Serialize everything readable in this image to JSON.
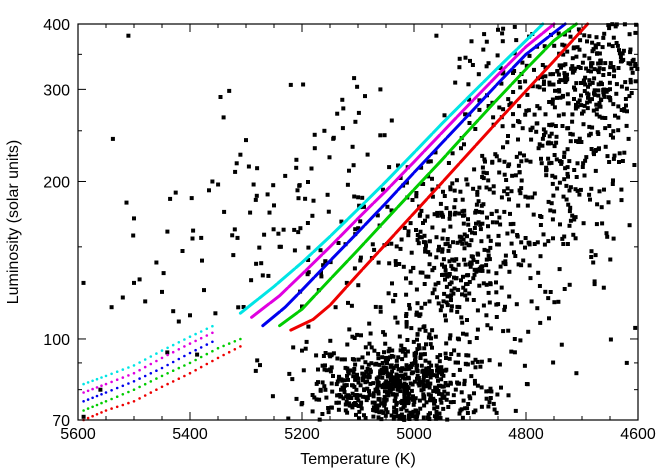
{
  "chart_data": {
    "type": "scatter",
    "title": "",
    "xlabel": "Temperature (K)",
    "ylabel": "Luminosity (solar units)",
    "x_reversed": true,
    "y_scale": "log",
    "xlim": [
      5600,
      4600
    ],
    "ylim": [
      70,
      400
    ],
    "x_ticks": [
      5600,
      5400,
      5200,
      5000,
      4800,
      4600
    ],
    "y_ticks": [
      70,
      100,
      200,
      300,
      400
    ],
    "grid": false,
    "legend": "none",
    "series": [
      {
        "color": "#00e5e5",
        "style": "line",
        "points": [
          [
            5310,
            112
          ],
          [
            5250,
            126
          ],
          [
            5200,
            140
          ],
          [
            5150,
            157
          ],
          [
            5100,
            177
          ],
          [
            5050,
            200
          ],
          [
            5000,
            227
          ],
          [
            4950,
            258
          ],
          [
            4900,
            292
          ],
          [
            4850,
            330
          ],
          [
            4800,
            372
          ],
          [
            4770,
            400
          ]
        ]
      },
      {
        "color": "#e000e0",
        "style": "line",
        "points": [
          [
            5290,
            110
          ],
          [
            5240,
            121
          ],
          [
            5200,
            133
          ],
          [
            5150,
            150
          ],
          [
            5100,
            170
          ],
          [
            5050,
            192
          ],
          [
            5000,
            218
          ],
          [
            4950,
            248
          ],
          [
            4900,
            282
          ],
          [
            4850,
            320
          ],
          [
            4800,
            362
          ],
          [
            4750,
            400
          ]
        ]
      },
      {
        "color": "#0000ee",
        "style": "line",
        "points": [
          [
            5270,
            106
          ],
          [
            5230,
            115
          ],
          [
            5200,
            124
          ],
          [
            5150,
            141
          ],
          [
            5100,
            160
          ],
          [
            5050,
            182
          ],
          [
            5000,
            208
          ],
          [
            4950,
            237
          ],
          [
            4900,
            270
          ],
          [
            4850,
            308
          ],
          [
            4800,
            350
          ],
          [
            4730,
            400
          ]
        ]
      },
      {
        "color": "#00cc00",
        "style": "line",
        "points": [
          [
            5240,
            106
          ],
          [
            5200,
            114
          ],
          [
            5150,
            130
          ],
          [
            5100,
            148
          ],
          [
            5050,
            169
          ],
          [
            5000,
            193
          ],
          [
            4950,
            220
          ],
          [
            4900,
            252
          ],
          [
            4850,
            288
          ],
          [
            4800,
            328
          ],
          [
            4750,
            372
          ],
          [
            4710,
            400
          ]
        ]
      },
      {
        "color": "#ee0000",
        "style": "line",
        "points": [
          [
            5220,
            104
          ],
          [
            5180,
            109
          ],
          [
            5150,
            116
          ],
          [
            5100,
            133
          ],
          [
            5050,
            152
          ],
          [
            5000,
            174
          ],
          [
            4950,
            199
          ],
          [
            4900,
            228
          ],
          [
            4850,
            261
          ],
          [
            4800,
            298
          ],
          [
            4750,
            340
          ],
          [
            4690,
            400
          ]
        ]
      },
      {
        "color": "#00e5e5",
        "style": "dots",
        "points": [
          [
            5590,
            82
          ],
          [
            5550,
            85
          ],
          [
            5500,
            89
          ],
          [
            5450,
            95
          ],
          [
            5400,
            101
          ],
          [
            5350,
            107
          ]
        ]
      },
      {
        "color": "#e000e0",
        "style": "dots",
        "points": [
          [
            5590,
            79
          ],
          [
            5550,
            82
          ],
          [
            5500,
            86
          ],
          [
            5450,
            92
          ],
          [
            5400,
            98
          ],
          [
            5350,
            104
          ]
        ]
      },
      {
        "color": "#0000ee",
        "style": "dots",
        "points": [
          [
            5590,
            76
          ],
          [
            5550,
            79
          ],
          [
            5500,
            83
          ],
          [
            5450,
            88
          ],
          [
            5400,
            94
          ],
          [
            5350,
            100
          ]
        ]
      },
      {
        "color": "#00cc00",
        "style": "dots",
        "points": [
          [
            5590,
            73
          ],
          [
            5550,
            76
          ],
          [
            5500,
            80
          ],
          [
            5450,
            85
          ],
          [
            5400,
            90
          ],
          [
            5350,
            96
          ],
          [
            5300,
            101
          ]
        ]
      },
      {
        "color": "#ee0000",
        "style": "dots",
        "points": [
          [
            5590,
            70
          ],
          [
            5550,
            73
          ],
          [
            5500,
            76
          ],
          [
            5450,
            81
          ],
          [
            5400,
            86
          ],
          [
            5350,
            92
          ],
          [
            5300,
            98
          ]
        ]
      }
    ],
    "clusters": [
      {
        "color": "#000000",
        "count": 700,
        "center": [
          5030,
          80
        ],
        "spread": [
          80,
          0.09
        ]
      },
      {
        "color": "#000000",
        "count": 380,
        "center": [
          4920,
          140
        ],
        "spread": [
          65,
          0.18
        ]
      },
      {
        "color": "#000000",
        "count": 420,
        "center": [
          4750,
          240
        ],
        "spread": [
          80,
          0.26
        ]
      },
      {
        "color": "#000000",
        "count": 220,
        "center": [
          4650,
          330
        ],
        "spread": [
          45,
          0.15
        ]
      },
      {
        "color": "#000000",
        "count": 170,
        "center": [
          5180,
          170
        ],
        "spread": [
          150,
          0.3
        ]
      }
    ],
    "points": [
      [
        5510,
        380
      ],
      [
        5330,
        298
      ],
      [
        5220,
        306
      ],
      [
        5400,
        111
      ],
      [
        5280,
        91
      ],
      [
        5050,
        92
      ],
      [
        5100,
        84
      ],
      [
        5200,
        95
      ],
      [
        5500,
        170
      ],
      [
        5360,
        200
      ],
      [
        5310,
        225
      ],
      [
        5300,
        240
      ],
      [
        5250,
        180
      ],
      [
        5230,
        205
      ],
      [
        5210,
        220
      ],
      [
        5160,
        250
      ],
      [
        5060,
        300
      ],
      [
        4960,
        380
      ],
      [
        4900,
        340
      ],
      [
        4870,
        370
      ],
      [
        4850,
        390
      ],
      [
        4820,
        395
      ],
      [
        5430,
        113
      ],
      [
        5420,
        108
      ],
      [
        5590,
        71
      ],
      [
        5560,
        80
      ],
      [
        5540,
        115
      ],
      [
        5520,
        120
      ],
      [
        5500,
        128
      ],
      [
        5490,
        130
      ],
      [
        5480,
        118
      ],
      [
        5460,
        140
      ],
      [
        5450,
        123
      ],
      [
        5380,
        156
      ],
      [
        5320,
        162
      ],
      [
        5260,
        132
      ],
      [
        5240,
        150
      ],
      [
        5190,
        133
      ],
      [
        5170,
        124
      ],
      [
        5140,
        115
      ],
      [
        5120,
        128
      ],
      [
        5110,
        101
      ],
      [
        5080,
        107
      ],
      [
        4820,
        100
      ],
      [
        4710,
        86
      ],
      [
        4620,
        90
      ],
      [
        4605,
        105
      ],
      [
        4615,
        165
      ],
      [
        4680,
        140
      ],
      [
        4740,
        136
      ],
      [
        4790,
        118
      ]
    ]
  }
}
